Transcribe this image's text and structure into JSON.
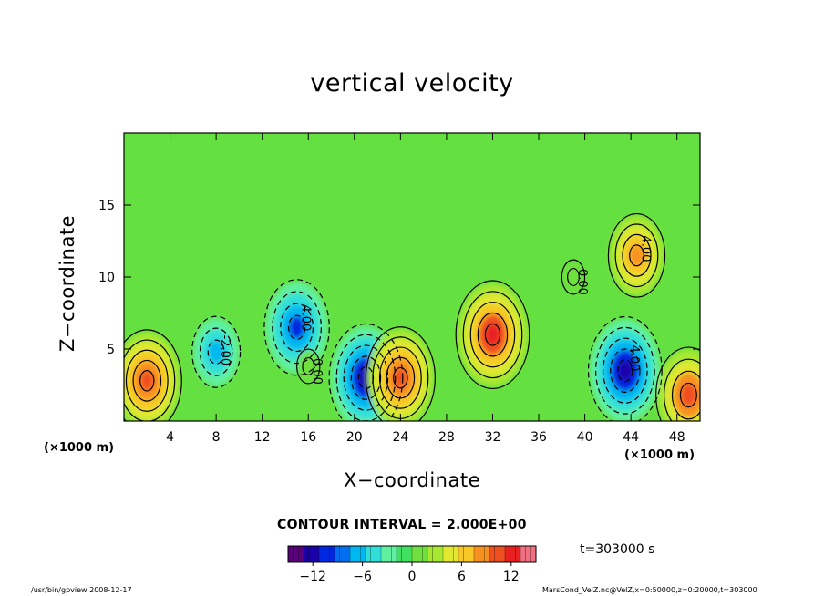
{
  "chart_data": {
    "type": "heatmap",
    "title": "vertical velocity",
    "xlabel": "X−coordinate",
    "ylabel": "Z−coordinate",
    "x_unit_label": "(×1000 m)",
    "y_unit_label": "(×1000 m)",
    "xlim": [
      0,
      50
    ],
    "ylim": [
      0,
      20
    ],
    "x_ticks": [
      4,
      8,
      12,
      16,
      20,
      24,
      28,
      32,
      36,
      40,
      44,
      48
    ],
    "y_ticks": [
      5,
      10,
      15
    ],
    "contour_interval_text": "CONTOUR INTERVAL = 2.000E+00",
    "time_text": "t=303000 s",
    "colorbar": {
      "min": -15,
      "max": 15,
      "ticks": [
        -12,
        -6,
        0,
        6,
        12
      ],
      "colors": [
        "#5a007a",
        "#1a00a8",
        "#0028e0",
        "#0070f0",
        "#00b8f0",
        "#30e0d8",
        "#60f0a0",
        "#40e060",
        "#70e040",
        "#a8e830",
        "#e0e830",
        "#f8c828",
        "#f89020",
        "#f05020",
        "#e82020",
        "#f07080"
      ]
    },
    "features": [
      {
        "x": 2,
        "z": 2.8,
        "value": 11,
        "label": ""
      },
      {
        "x": 8,
        "z": 4.8,
        "value": -6,
        "label": "-2.00"
      },
      {
        "x": 15,
        "z": 6.5,
        "value": -10,
        "label": "4.00"
      },
      {
        "x": 16,
        "z": 3.8,
        "value": 0,
        "label": "0.00"
      },
      {
        "x": 21,
        "z": 3,
        "value": -12,
        "label": ""
      },
      {
        "x": 24,
        "z": 3,
        "value": 11,
        "label": ""
      },
      {
        "x": 32,
        "z": 6,
        "value": 12,
        "label": ""
      },
      {
        "x": 39,
        "z": 10,
        "value": 0,
        "label": "0.00"
      },
      {
        "x": 43.5,
        "z": 3.5,
        "value": -12,
        "label": "4.00"
      },
      {
        "x": 44.5,
        "z": 11.5,
        "value": 8,
        "label": "4.00"
      },
      {
        "x": 49,
        "z": 1.8,
        "value": 10,
        "label": ""
      }
    ]
  },
  "footer": {
    "left": "/usr/bin/gpview  2008-12-17",
    "right": "MarsCond_VelZ.nc@VelZ,x=0:50000,z=0:20000,t=303000"
  }
}
